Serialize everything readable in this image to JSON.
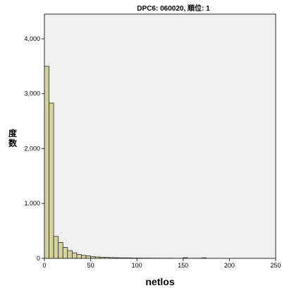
{
  "chart_data": {
    "type": "bar",
    "title": "DPC6: 060020, 順位: 1",
    "xlabel": "netlos",
    "ylabel": "度数",
    "legend_fragment": "",
    "xlim": [
      0,
      250
    ],
    "ylim": [
      0,
      4450
    ],
    "xticks": [
      0,
      50,
      100,
      150,
      200,
      250
    ],
    "yticks": [
      0,
      1000,
      2000,
      3000,
      4000
    ],
    "ytick_labels": [
      "0",
      "1,000",
      "2,000",
      "3,000",
      "4,000"
    ],
    "grid": false,
    "bin_width": 5,
    "bins_start": [
      0,
      5,
      10,
      15,
      20,
      25,
      30,
      35,
      40,
      45,
      50,
      55,
      60,
      65,
      70,
      75,
      80,
      85,
      90,
      95,
      100,
      105,
      110,
      115,
      120,
      125,
      130,
      135,
      140,
      145,
      150,
      155,
      160,
      165,
      170
    ],
    "values": [
      3500,
      2830,
      400,
      290,
      200,
      140,
      100,
      70,
      55,
      45,
      30,
      25,
      20,
      18,
      14,
      12,
      10,
      9,
      8,
      7,
      6,
      5,
      5,
      4,
      4,
      3,
      3,
      3,
      2,
      2,
      12,
      2,
      3,
      2,
      10
    ],
    "colors": {
      "bar_fill": "#d6d2a0",
      "bar_stroke": "#2b2b2b",
      "plot_bg": "#f0f0f0",
      "frame": "#2b2b2b"
    }
  }
}
